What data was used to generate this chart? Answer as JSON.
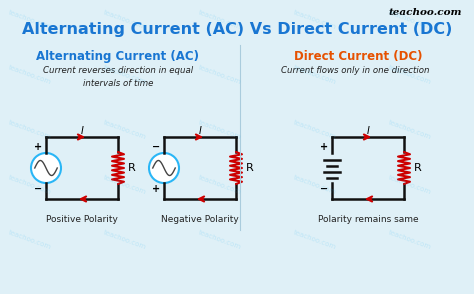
{
  "title": "Alternating Current (AC) Vs Direct Current (DC)",
  "title_color": "#1976D2",
  "title_fontsize": 11.5,
  "bg_color": "#dff0f7",
  "watermark": "teachoo.com",
  "ac_section_title": "Alternating Current (AC)",
  "ac_section_color": "#1976D2",
  "ac_description": "Current reverses direction in equal\nintervals of time",
  "dc_section_title": "Direct Current (DC)",
  "dc_section_color": "#e65100",
  "dc_description": "Current flows only in one direction",
  "circuit1_label": "Positive Polarity",
  "circuit2_label": "Negative Polarity",
  "circuit3_label": "Polarity remains same",
  "wire_color": "#111111",
  "arrow_color": "#cc0000",
  "resistor_color": "#cc0000",
  "ac_source_color": "#29b6f6",
  "sine_color": "#444444",
  "battery_color": "#111111",
  "text_color": "#222222"
}
